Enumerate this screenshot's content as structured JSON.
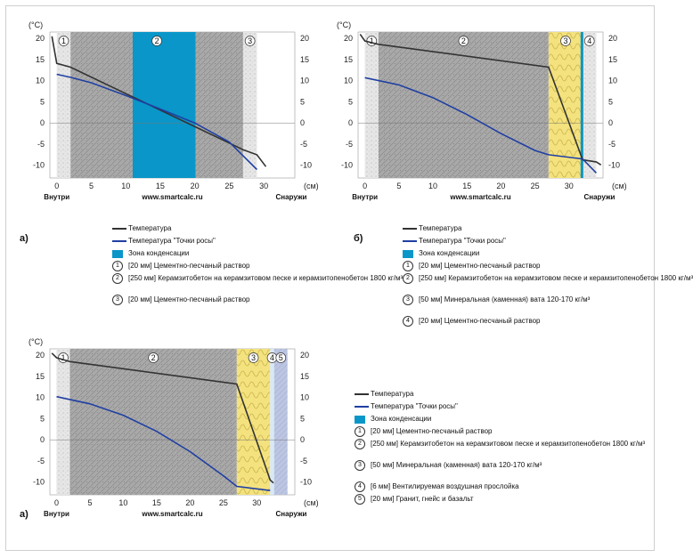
{
  "common": {
    "deg_label": "(°C)",
    "cm_label": "(см)",
    "inside_label": "Внутри",
    "outside_label": "Снаружи",
    "site_label": "www.smartcalc.ru",
    "y_ticks": [
      20,
      15,
      10,
      5,
      0,
      -5,
      -10
    ],
    "x_ticks": [
      0,
      5,
      10,
      15,
      20,
      25,
      30
    ]
  },
  "colors": {
    "temperature": "#333333",
    "dew_point": "#1f3fa3",
    "condensation": "#0a96c8",
    "plaster": "#e6e6e6",
    "concrete": "#a9a9a9",
    "mineral_wool": "#f3e27e",
    "air_gap": "#d9e8f6",
    "granite": "#bcc6e2"
  },
  "panels": [
    {
      "id": "a-top",
      "label": "а)",
      "chart_data": {
        "type": "line",
        "xlabel": "(см)",
        "ylabel": "(°C)",
        "xlim": [
          -1,
          34.5
        ],
        "ylim": [
          -13,
          21.5
        ],
        "layers": [
          {
            "num": "1",
            "from": 0,
            "to": 2,
            "material": "plaster"
          },
          {
            "num": "2",
            "from": 2,
            "to": 27,
            "material": "concrete"
          },
          {
            "num": "3",
            "from": 27,
            "to": 29,
            "material": "plaster"
          }
        ],
        "condensation_zone": [
          11,
          20.1
        ],
        "series": [
          {
            "name": "Температура",
            "x": [
              -0.7,
              0,
              2,
              27,
              29,
              30.3
            ],
            "y": [
              20.5,
              14.1,
              13.2,
              -6.3,
              -7.5,
              -10.3
            ]
          },
          {
            "name": "Температура \"Точки росы\"",
            "x": [
              0,
              2,
              5,
              10,
              15,
              20,
              25,
              29
            ],
            "y": [
              11.5,
              10.8,
              9.5,
              6.5,
              3.3,
              0,
              -4.5,
              -11
            ]
          }
        ]
      },
      "legend": [
        {
          "kind": "line",
          "color": "#333333",
          "text": "Температура"
        },
        {
          "kind": "line",
          "color": "#1f3fa3",
          "text": "Температура \"Точки росы\""
        },
        {
          "kind": "box",
          "color": "#0a96c8",
          "text": "Зона конденсации"
        },
        {
          "kind": "num",
          "num": "1",
          "text": "[20 мм] Цементно-песчаный раствор"
        },
        {
          "kind": "num",
          "num": "2",
          "text": "[250 мм] Керамзитобетон на керамзитовом песке и керамзитопенобетон 1800 кг/м³"
        },
        {
          "kind": "num",
          "num": "3",
          "text": "[20 мм] Цементно-песчаный раствор"
        }
      ]
    },
    {
      "id": "b-top",
      "label": "б)",
      "chart_data": {
        "type": "line",
        "xlabel": "(см)",
        "ylabel": "(°C)",
        "xlim": [
          -1,
          35
        ],
        "ylim": [
          -13,
          21.5
        ],
        "layers": [
          {
            "num": "1",
            "from": 0,
            "to": 2,
            "material": "plaster"
          },
          {
            "num": "2",
            "from": 2,
            "to": 27,
            "material": "concrete"
          },
          {
            "num": "3",
            "from": 27,
            "to": 32,
            "material": "mineral_wool"
          },
          {
            "num": "4",
            "from": 32,
            "to": 34,
            "material": "plaster"
          }
        ],
        "condensation_zone": [
          31.7,
          32.1
        ],
        "series": [
          {
            "name": "Температура",
            "x": [
              -0.7,
              0,
              2,
              27,
              32,
              34,
              34.7
            ],
            "y": [
              21,
              19.4,
              18.6,
              13.2,
              -8.7,
              -9.2,
              -9.9
            ]
          },
          {
            "name": "Температура \"Точки росы\"",
            "x": [
              0,
              5,
              10,
              15,
              20,
              25,
              27,
              32,
              34
            ],
            "y": [
              10.7,
              9,
              6,
              2,
              -2.5,
              -6.5,
              -7.5,
              -8.5,
              -11.8
            ]
          }
        ]
      },
      "legend": [
        {
          "kind": "line",
          "color": "#333333",
          "text": "Температура"
        },
        {
          "kind": "line",
          "color": "#1f3fa3",
          "text": "Температура \"Точки росы\""
        },
        {
          "kind": "box",
          "color": "#0a96c8",
          "text": "Зона конденсации"
        },
        {
          "kind": "num",
          "num": "1",
          "text": "[20 мм] Цементно-песчаный раствор"
        },
        {
          "kind": "num",
          "num": "2",
          "text": "[250 мм] Керамзитобетон на керамзитовом песке и керамзитопенобетон 1800 кг/м³"
        },
        {
          "kind": "num",
          "num": "3",
          "text": "[50 мм] Минеральная (каменная) вата 120-170 кг/м³"
        },
        {
          "kind": "num",
          "num": "4",
          "text": "[20 мм] Цементно-песчаный раствор"
        }
      ]
    },
    {
      "id": "a-bottom",
      "label": "а)",
      "chart_data": {
        "type": "line",
        "xlabel": "(см)",
        "ylabel": "(°C)",
        "xlim": [
          -1,
          35.7
        ],
        "ylim": [
          -13,
          21.5
        ],
        "layers": [
          {
            "num": "1",
            "from": 0,
            "to": 2,
            "material": "plaster"
          },
          {
            "num": "2",
            "from": 2,
            "to": 27,
            "material": "concrete"
          },
          {
            "num": "3",
            "from": 27,
            "to": 32,
            "material": "mineral_wool"
          },
          {
            "num": "4",
            "from": 32,
            "to": 32.6,
            "material": "air_gap"
          },
          {
            "num": "5",
            "from": 32.6,
            "to": 34.6,
            "material": "granite"
          }
        ],
        "series": [
          {
            "name": "Температура",
            "x": [
              -0.7,
              0,
              2,
              27,
              32,
              32.5
            ],
            "y": [
              20.5,
              19.4,
              18.5,
              13.2,
              -9.5,
              -10.2
            ]
          },
          {
            "name": "Температура \"Точки росы\"",
            "x": [
              0,
              5,
              10,
              15,
              20,
              25,
              27,
              32
            ],
            "y": [
              10.2,
              8.5,
              5.8,
              2,
              -2.8,
              -8.5,
              -11,
              -12
            ]
          }
        ]
      },
      "legend": [
        {
          "kind": "line",
          "color": "#333333",
          "text": "Температура"
        },
        {
          "kind": "line",
          "color": "#1f3fa3",
          "text": "Температура \"Точки росы\""
        },
        {
          "kind": "box",
          "color": "#0a96c8",
          "text": "Зона конденсации"
        },
        {
          "kind": "num",
          "num": "1",
          "text": "[20 мм] Цементно-песчаный раствор"
        },
        {
          "kind": "num",
          "num": "2",
          "text": "[250 мм] Керамзитобетон на керамзитовом песке и керамзитопенобетон 1800 кг/м³"
        },
        {
          "kind": "num",
          "num": "3",
          "text": "[50 мм] Минеральная (каменная) вата 120-170 кг/м³"
        },
        {
          "kind": "num",
          "num": "4",
          "text": "[6 мм] Вентилируемая воздушная прослойка"
        },
        {
          "kind": "num",
          "num": "5",
          "text": "[20 мм] Гранит, гнейс и базальт"
        }
      ]
    }
  ]
}
